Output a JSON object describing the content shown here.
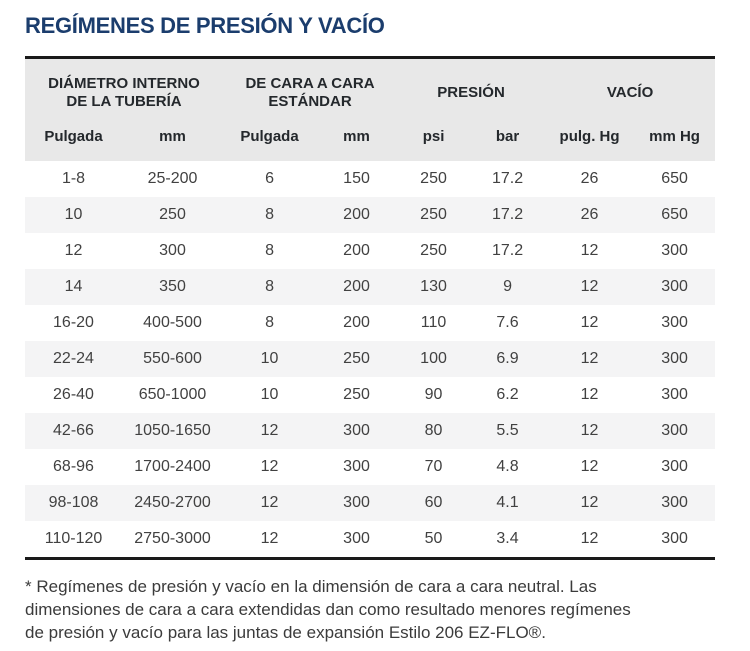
{
  "page": {
    "title": "REGÍMENES DE PRESIÓN Y VACÍO"
  },
  "table": {
    "column_groups": [
      {
        "lines": [
          "DIÁMETRO INTERNO",
          "DE LA TUBERÍA"
        ],
        "span": 2
      },
      {
        "lines": [
          "DE CARA A CARA",
          "ESTÁNDAR"
        ],
        "span": 2
      },
      {
        "lines": [
          "PRESIÓN"
        ],
        "span": 2
      },
      {
        "lines": [
          "VACÍO"
        ],
        "span": 2
      }
    ],
    "columns": [
      "Pulgada",
      "mm",
      "Pulgada",
      "mm",
      "psi",
      "bar",
      "pulg. Hg",
      "mm Hg"
    ],
    "rows": [
      [
        "1-8",
        "25-200",
        "6",
        "150",
        "250",
        "17.2",
        "26",
        "650"
      ],
      [
        "10",
        "250",
        "8",
        "200",
        "250",
        "17.2",
        "26",
        "650"
      ],
      [
        "12",
        "300",
        "8",
        "200",
        "250",
        "17.2",
        "12",
        "300"
      ],
      [
        "14",
        "350",
        "8",
        "200",
        "130",
        "9",
        "12",
        "300"
      ],
      [
        "16-20",
        "400-500",
        "8",
        "200",
        "110",
        "7.6",
        "12",
        "300"
      ],
      [
        "22-24",
        "550-600",
        "10",
        "250",
        "100",
        "6.9",
        "12",
        "300"
      ],
      [
        "26-40",
        "650-1000",
        "10",
        "250",
        "90",
        "6.2",
        "12",
        "300"
      ],
      [
        "42-66",
        "1050-1650",
        "12",
        "300",
        "80",
        "5.5",
        "12",
        "300"
      ],
      [
        "68-96",
        "1700-2400",
        "12",
        "300",
        "70",
        "4.8",
        "12",
        "300"
      ],
      [
        "98-108",
        "2450-2700",
        "12",
        "300",
        "60",
        "4.1",
        "12",
        "300"
      ],
      [
        "110-120",
        "2750-3000",
        "12",
        "300",
        "50",
        "3.4",
        "12",
        "300"
      ]
    ]
  },
  "footnote": {
    "lines": [
      "* Regímenes de presión y vacío en la dimensión de cara a cara neutral. Las",
      "dimensiones de cara a cara extendidas dan como resultado menores regímenes",
      "de presión y vacío para las juntas de expansión Estilo 206 EZ-FLO®."
    ]
  },
  "colors": {
    "title": "#1b3d6d",
    "rule": "#1a1a1a",
    "header_bg": "#e8e8e8",
    "header_text": "#24282c",
    "stripe_bg": "#f4f4f5",
    "body_text": "#414141",
    "footnote_text": "#3b3b3b"
  }
}
